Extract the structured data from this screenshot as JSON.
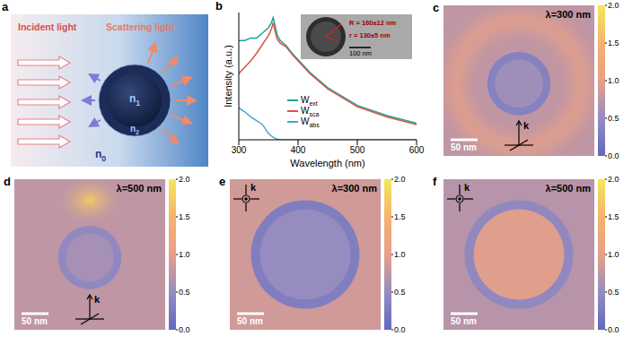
{
  "diagram": {
    "letter": "a",
    "incident": "Incident light",
    "scattered": "Scattering light",
    "core": "n1",
    "shell": "n2",
    "medium": "n0"
  },
  "chart_data": {
    "letter": "b",
    "type": "line",
    "x_label": "Wavelength (nm)",
    "y_label": "Intensity (a.u.)",
    "x": [
      300,
      310,
      320,
      330,
      340,
      350,
      355,
      358,
      362,
      365,
      370,
      380,
      390,
      400,
      420,
      450,
      500,
      550,
      600
    ],
    "xlim": [
      300,
      600
    ],
    "xticks": [
      300,
      400,
      500,
      600
    ],
    "ylim": [
      0,
      1
    ],
    "tick_labels": "x",
    "legend": "center",
    "series": [
      {
        "name": "Wext",
        "color": "#1fa58f",
        "values": [
          0.78,
          0.78,
          0.8,
          0.8,
          0.84,
          0.88,
          0.92,
          0.96,
          0.88,
          0.82,
          0.78,
          0.74,
          0.68,
          0.63,
          0.53,
          0.41,
          0.27,
          0.19,
          0.13
        ]
      },
      {
        "name": "Wsca",
        "color": "#d9534f",
        "values": [
          0.52,
          0.57,
          0.62,
          0.68,
          0.75,
          0.82,
          0.87,
          0.92,
          0.84,
          0.79,
          0.76,
          0.73,
          0.67,
          0.62,
          0.52,
          0.4,
          0.26,
          0.18,
          0.12
        ]
      },
      {
        "name": "Wabs",
        "color": "#4aa3d8",
        "values": [
          0.25,
          0.22,
          0.18,
          0.15,
          0.12,
          0.05,
          0.03,
          0.02,
          0.01,
          0.005,
          0,
          0,
          0,
          0,
          0,
          0,
          0,
          0,
          0
        ]
      }
    ],
    "annotations": [
      "R = 160±12 nm",
      "r = 130±5 nm",
      "100 nm"
    ]
  },
  "field_maps": {
    "colorbar": {
      "range": [
        0,
        2
      ],
      "ticks": [
        {
          "value": 0,
          "label": "0.0"
        },
        {
          "value": 0.5,
          "label": "0.5"
        },
        {
          "value": 1,
          "label": "1.0"
        },
        {
          "value": 1.5,
          "label": "1.5"
        },
        {
          "value": 2,
          "label": "2.0"
        }
      ]
    },
    "k_label": "k",
    "scale_bar": "50 nm",
    "maps": [
      {
        "letter": "c",
        "label": "λ=300 nm",
        "k_direction": "up",
        "background": 0.75,
        "band": 0.95,
        "shell": 0.35,
        "core": 0.55
      },
      {
        "letter": "d",
        "label": "λ=500 nm",
        "k_direction": "up",
        "background": 0.75,
        "hotspot": 1.7,
        "shell": 0.45,
        "core": 0.6
      },
      {
        "letter": "e",
        "label": "λ=300 nm",
        "k_direction": "out",
        "background": 0.85,
        "shell": 0.3,
        "core": 0.5
      },
      {
        "letter": "f",
        "label": "λ=500 nm",
        "k_direction": "out",
        "background": 0.7,
        "shell": 0.45,
        "core": 0.95
      }
    ]
  }
}
